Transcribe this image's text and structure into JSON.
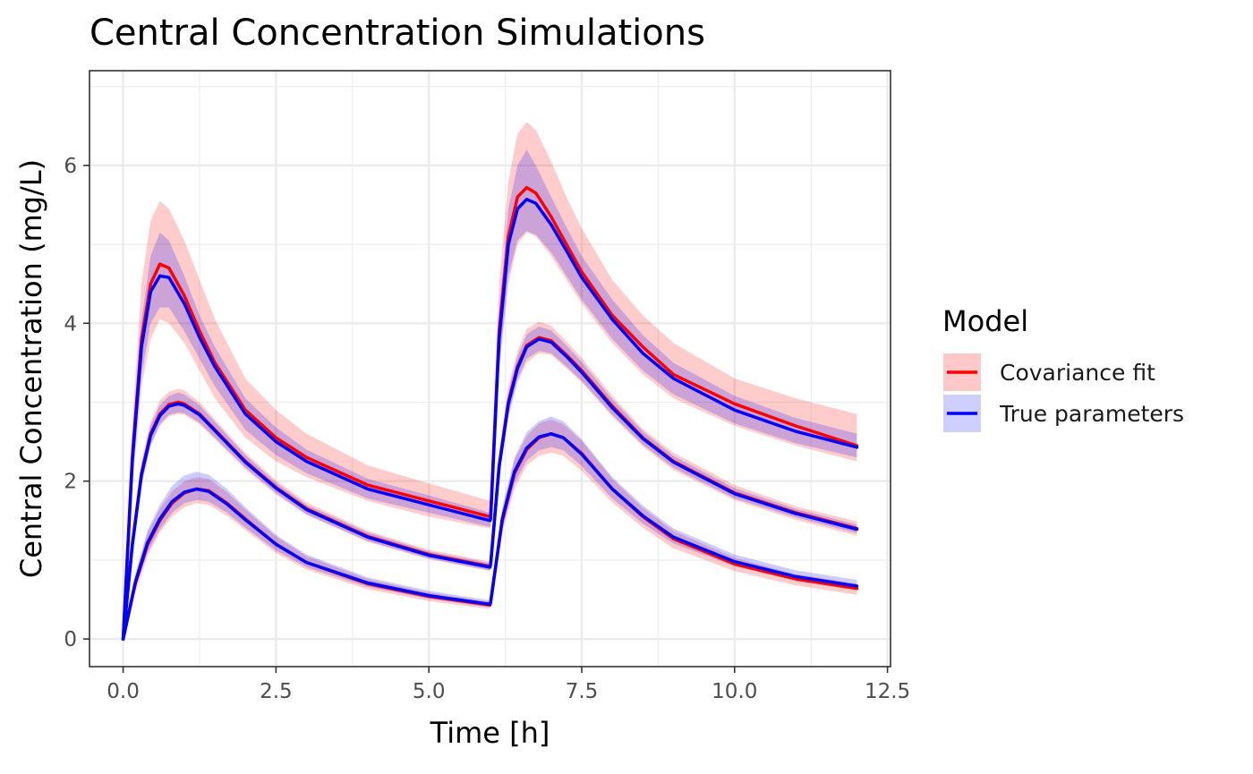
{
  "chart_data": {
    "type": "line",
    "title": "Central Concentration Simulations",
    "xlabel": "Time [h]",
    "ylabel": "Central Concentration (mg/L)",
    "xlim": [
      -0.55,
      12.55
    ],
    "ylim": [
      -0.35,
      7.2
    ],
    "x_ticks": [
      0,
      2.5,
      5,
      7.5,
      10,
      12.5
    ],
    "x_tick_labels": [
      "0.0",
      "2.5",
      "5.0",
      "7.5",
      "10.0",
      "12.5"
    ],
    "y_ticks": [
      0,
      2,
      4,
      6
    ],
    "y_tick_labels": [
      "0",
      "2",
      "4",
      "6"
    ],
    "grid": true,
    "legend": {
      "title": "Model",
      "placement": "right",
      "entries": [
        {
          "label": "Covariance fit",
          "color": "#ff0000",
          "fill": "#ffc9c9"
        },
        {
          "label": "True parameters",
          "color": "#0000ff",
          "fill": "#cfcfff"
        }
      ]
    },
    "series": [
      {
        "name": "Covariance fit",
        "color": "#ff0000",
        "band_color": "#ff0000",
        "curves": [
          {
            "x": [
              0,
              0.15,
              0.3,
              0.45,
              0.6,
              0.75,
              1.0,
              1.25,
              1.5,
              2.0,
              2.5,
              3.0,
              4.0,
              5.0,
              6.0,
              6.01,
              6.15,
              6.3,
              6.45,
              6.6,
              6.75,
              7.0,
              7.25,
              7.5,
              8.0,
              8.5,
              9.0,
              10.0,
              11.0,
              12.0
            ],
            "y": [
              0.0,
              2.3,
              3.8,
              4.5,
              4.75,
              4.7,
              4.35,
              3.9,
              3.5,
              2.9,
              2.55,
              2.3,
              1.95,
              1.75,
              1.55,
              1.57,
              3.9,
              5.1,
              5.6,
              5.72,
              5.65,
              5.35,
              5.0,
              4.65,
              4.1,
              3.7,
              3.35,
              2.98,
              2.7,
              2.45
            ],
            "lower": [
              0.0,
              1.9,
              3.2,
              3.8,
              4.05,
              4.0,
              3.75,
              3.4,
              3.05,
              2.55,
              2.25,
              2.05,
              1.75,
              1.55,
              1.4,
              1.42,
              3.4,
              4.5,
              5.0,
              5.15,
              5.1,
              4.85,
              4.55,
              4.25,
              3.75,
              3.35,
              3.05,
              2.7,
              2.45,
              2.25
            ],
            "upper": [
              0.0,
              2.7,
              4.5,
              5.3,
              5.55,
              5.45,
              5.05,
              4.55,
              4.05,
              3.3,
              2.9,
              2.6,
              2.2,
              1.97,
              1.75,
              1.77,
              4.5,
              5.8,
              6.4,
              6.55,
              6.45,
              6.05,
              5.6,
              5.2,
              4.55,
              4.1,
              3.75,
              3.3,
              3.05,
              2.85
            ]
          },
          {
            "x": [
              0,
              0.15,
              0.3,
              0.45,
              0.6,
              0.75,
              0.9,
              1.0,
              1.25,
              1.5,
              2.0,
              2.5,
              3.0,
              4.0,
              5.0,
              6.0,
              6.01,
              6.15,
              6.3,
              6.45,
              6.6,
              6.8,
              7.0,
              7.25,
              7.5,
              8.0,
              8.5,
              9.0,
              10.0,
              11.0,
              12.0
            ],
            "y": [
              0.0,
              1.2,
              2.1,
              2.6,
              2.85,
              2.97,
              3.0,
              2.98,
              2.85,
              2.65,
              2.25,
              1.92,
              1.65,
              1.3,
              1.07,
              0.92,
              0.95,
              2.2,
              3.0,
              3.45,
              3.72,
              3.82,
              3.78,
              3.6,
              3.4,
              2.95,
              2.55,
              2.25,
              1.85,
              1.6,
              1.4
            ],
            "lower": [
              0.0,
              1.1,
              1.95,
              2.45,
              2.7,
              2.82,
              2.85,
              2.84,
              2.72,
              2.53,
              2.15,
              1.83,
              1.57,
              1.23,
              1.01,
              0.86,
              0.89,
              2.05,
              2.8,
              3.25,
              3.5,
              3.62,
              3.6,
              3.43,
              3.25,
              2.82,
              2.44,
              2.14,
              1.76,
              1.51,
              1.31
            ],
            "upper": [
              0.0,
              1.3,
              2.25,
              2.75,
              3.02,
              3.13,
              3.17,
              3.15,
              3.0,
              2.78,
              2.36,
              2.01,
              1.73,
              1.37,
              1.13,
              0.98,
              1.01,
              2.35,
              3.2,
              3.65,
              3.93,
              4.02,
              3.97,
              3.77,
              3.56,
              3.08,
              2.66,
              2.36,
              1.95,
              1.68,
              1.49
            ]
          },
          {
            "x": [
              0,
              0.2,
              0.4,
              0.6,
              0.8,
              1.0,
              1.2,
              1.4,
              1.7,
              2.0,
              2.5,
              3.0,
              4.0,
              5.0,
              6.0,
              6.01,
              6.2,
              6.4,
              6.6,
              6.8,
              7.0,
              7.2,
              7.5,
              8.0,
              8.5,
              9.0,
              10.0,
              11.0,
              12.0
            ],
            "y": [
              0.0,
              0.7,
              1.2,
              1.5,
              1.72,
              1.85,
              1.9,
              1.88,
              1.72,
              1.52,
              1.2,
              0.97,
              0.7,
              0.54,
              0.43,
              0.46,
              1.5,
              2.1,
              2.4,
              2.55,
              2.6,
              2.55,
              2.35,
              1.9,
              1.55,
              1.27,
              0.95,
              0.76,
              0.64
            ],
            "lower": [
              0.0,
              0.6,
              1.05,
              1.35,
              1.55,
              1.67,
              1.72,
              1.7,
              1.56,
              1.38,
              1.09,
              0.88,
              0.63,
              0.48,
              0.38,
              0.41,
              1.35,
              1.9,
              2.2,
              2.32,
              2.36,
              2.32,
              2.13,
              1.73,
              1.41,
              1.15,
              0.86,
              0.68,
              0.56
            ],
            "upper": [
              0.0,
              0.8,
              1.35,
              1.65,
              1.87,
              2.0,
              2.05,
              2.03,
              1.86,
              1.64,
              1.3,
              1.05,
              0.76,
              0.59,
              0.47,
              0.5,
              1.62,
              2.27,
              2.57,
              2.73,
              2.78,
              2.72,
              2.51,
              2.03,
              1.66,
              1.37,
              1.03,
              0.82,
              0.7
            ]
          }
        ]
      },
      {
        "name": "True parameters",
        "color": "#0000ff",
        "band_color": "#0000ff",
        "curves": [
          {
            "x": [
              0,
              0.15,
              0.3,
              0.45,
              0.6,
              0.75,
              1.0,
              1.25,
              1.5,
              2.0,
              2.5,
              3.0,
              4.0,
              5.0,
              6.0,
              6.01,
              6.15,
              6.3,
              6.45,
              6.6,
              6.75,
              7.0,
              7.25,
              7.5,
              8.0,
              8.5,
              9.0,
              10.0,
              11.0,
              12.0
            ],
            "y": [
              0.0,
              2.25,
              3.7,
              4.4,
              4.6,
              4.58,
              4.25,
              3.82,
              3.45,
              2.85,
              2.5,
              2.25,
              1.9,
              1.7,
              1.5,
              1.52,
              3.8,
              5.0,
              5.45,
              5.57,
              5.52,
              5.25,
              4.92,
              4.58,
              4.05,
              3.62,
              3.3,
              2.9,
              2.63,
              2.43
            ],
            "lower": [
              0.0,
              2.0,
              3.35,
              4.0,
              4.2,
              4.2,
              3.9,
              3.55,
              3.2,
              2.65,
              2.33,
              2.1,
              1.78,
              1.6,
              1.42,
              1.44,
              3.45,
              4.6,
              5.05,
              5.17,
              5.12,
              4.9,
              4.6,
              4.3,
              3.8,
              3.4,
              3.1,
              2.73,
              2.48,
              2.3
            ],
            "upper": [
              0.0,
              2.5,
              4.05,
              4.85,
              5.15,
              5.05,
              4.6,
              4.1,
              3.7,
              3.05,
              2.68,
              2.4,
              2.03,
              1.82,
              1.6,
              1.62,
              4.15,
              5.45,
              6.0,
              6.2,
              6.0,
              5.6,
              5.22,
              4.85,
              4.3,
              3.85,
              3.5,
              3.08,
              2.8,
              2.6
            ]
          },
          {
            "x": [
              0,
              0.15,
              0.3,
              0.45,
              0.6,
              0.75,
              0.9,
              1.0,
              1.25,
              1.5,
              2.0,
              2.5,
              3.0,
              4.0,
              5.0,
              6.0,
              6.01,
              6.15,
              6.3,
              6.45,
              6.6,
              6.8,
              7.0,
              7.25,
              7.5,
              8.0,
              8.5,
              9.0,
              10.0,
              11.0,
              12.0
            ],
            "y": [
              0.0,
              1.18,
              2.08,
              2.58,
              2.83,
              2.95,
              2.98,
              2.96,
              2.84,
              2.64,
              2.24,
              1.91,
              1.64,
              1.29,
              1.06,
              0.91,
              0.94,
              2.18,
              2.98,
              3.43,
              3.7,
              3.8,
              3.76,
              3.58,
              3.38,
              2.93,
              2.54,
              2.24,
              1.84,
              1.59,
              1.39
            ],
            "lower": [
              0.0,
              1.1,
              1.96,
              2.46,
              2.72,
              2.84,
              2.87,
              2.86,
              2.74,
              2.55,
              2.17,
              1.85,
              1.58,
              1.24,
              1.02,
              0.87,
              0.9,
              2.07,
              2.84,
              3.29,
              3.55,
              3.65,
              3.62,
              3.45,
              3.27,
              2.84,
              2.46,
              2.17,
              1.78,
              1.54,
              1.34
            ],
            "upper": [
              0.0,
              1.27,
              2.21,
              2.71,
              2.96,
              3.08,
              3.12,
              3.1,
              2.96,
              2.75,
              2.33,
              1.98,
              1.7,
              1.35,
              1.11,
              0.96,
              0.99,
              2.3,
              3.13,
              3.58,
              3.86,
              3.96,
              3.91,
              3.72,
              3.51,
              3.04,
              2.63,
              2.32,
              1.91,
              1.65,
              1.45
            ]
          },
          {
            "x": [
              0,
              0.2,
              0.4,
              0.6,
              0.8,
              1.0,
              1.2,
              1.4,
              1.7,
              2.0,
              2.5,
              3.0,
              4.0,
              5.0,
              6.0,
              6.01,
              6.2,
              6.4,
              6.6,
              6.8,
              7.0,
              7.2,
              7.5,
              8.0,
              8.5,
              9.0,
              10.0,
              11.0,
              12.0
            ],
            "y": [
              0.0,
              0.72,
              1.22,
              1.52,
              1.74,
              1.86,
              1.9,
              1.87,
              1.71,
              1.51,
              1.2,
              0.97,
              0.71,
              0.55,
              0.44,
              0.47,
              1.52,
              2.12,
              2.42,
              2.56,
              2.6,
              2.55,
              2.34,
              1.9,
              1.56,
              1.29,
              0.98,
              0.79,
              0.67
            ],
            "lower": [
              0.0,
              0.64,
              1.1,
              1.39,
              1.6,
              1.72,
              1.76,
              1.74,
              1.6,
              1.41,
              1.12,
              0.91,
              0.66,
              0.51,
              0.4,
              0.43,
              1.4,
              1.97,
              2.26,
              2.39,
              2.43,
              2.39,
              2.19,
              1.78,
              1.46,
              1.21,
              0.92,
              0.74,
              0.62
            ],
            "upper": [
              0.0,
              0.82,
              1.38,
              1.7,
              1.94,
              2.07,
              2.12,
              2.08,
              1.9,
              1.67,
              1.32,
              1.07,
              0.78,
              0.61,
              0.49,
              0.52,
              1.66,
              2.3,
              2.62,
              2.76,
              2.82,
              2.76,
              2.53,
              2.05,
              1.69,
              1.4,
              1.07,
              0.87,
              0.75
            ]
          }
        ]
      }
    ]
  }
}
